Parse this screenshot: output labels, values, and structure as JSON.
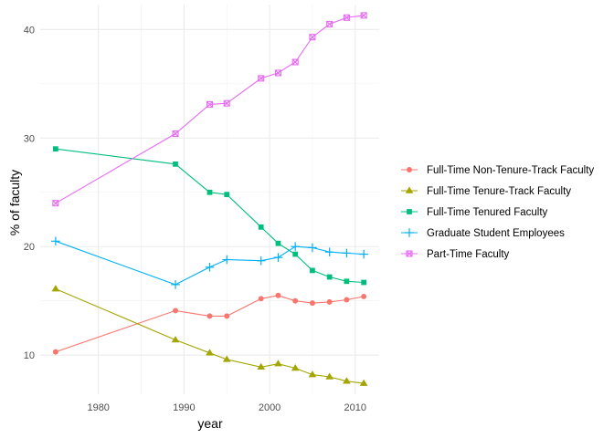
{
  "chart_data": {
    "type": "line",
    "xlabel": "year",
    "ylabel": "% of faculty",
    "xlim": [
      1973.2,
      2012.8
    ],
    "ylim": [
      6.4,
      42.3
    ],
    "x_ticks": [
      1980,
      1990,
      2000,
      2010
    ],
    "y_ticks": [
      10,
      20,
      30,
      40
    ],
    "grid": true,
    "legend_position": "right",
    "series": [
      {
        "name": "Full-Time Non-Tenure-Track Faculty",
        "color": "#F8766D",
        "marker": "circle",
        "x": [
          1975,
          1989,
          1993,
          1995,
          1999,
          2001,
          2003,
          2005,
          2007,
          2009,
          2011
        ],
        "values": [
          10.3,
          14.1,
          13.6,
          13.6,
          15.2,
          15.5,
          15.0,
          14.8,
          14.9,
          15.1,
          15.4
        ]
      },
      {
        "name": "Full-Time Tenure-Track Faculty",
        "color": "#A3A500",
        "marker": "triangle",
        "x": [
          1975,
          1989,
          1993,
          1995,
          1999,
          2001,
          2003,
          2005,
          2007,
          2009,
          2011
        ],
        "values": [
          16.1,
          11.4,
          10.2,
          9.6,
          8.9,
          9.2,
          8.8,
          8.2,
          8.0,
          7.6,
          7.4
        ]
      },
      {
        "name": "Full-Time Tenured Faculty",
        "color": "#00BF7D",
        "marker": "square",
        "x": [
          1975,
          1989,
          1993,
          1995,
          1999,
          2001,
          2003,
          2005,
          2007,
          2009,
          2011
        ],
        "values": [
          29.0,
          27.6,
          25.0,
          24.8,
          21.8,
          20.3,
          19.3,
          17.8,
          17.2,
          16.8,
          16.7
        ]
      },
      {
        "name": "Graduate Student Employees",
        "color": "#00B0F6",
        "marker": "plus",
        "x": [
          1975,
          1989,
          1993,
          1995,
          1999,
          2001,
          2003,
          2005,
          2007,
          2009,
          2011
        ],
        "values": [
          20.5,
          16.5,
          18.1,
          18.8,
          18.7,
          19.0,
          20.0,
          19.9,
          19.5,
          19.4,
          19.3
        ]
      },
      {
        "name": "Part-Time Faculty",
        "color": "#E76BF3",
        "marker": "boxx",
        "x": [
          1975,
          1989,
          1993,
          1995,
          1999,
          2001,
          2003,
          2005,
          2007,
          2009,
          2011
        ],
        "values": [
          24.0,
          30.4,
          33.1,
          33.2,
          35.5,
          36.0,
          37.0,
          39.3,
          40.5,
          41.1,
          41.3
        ]
      }
    ]
  }
}
